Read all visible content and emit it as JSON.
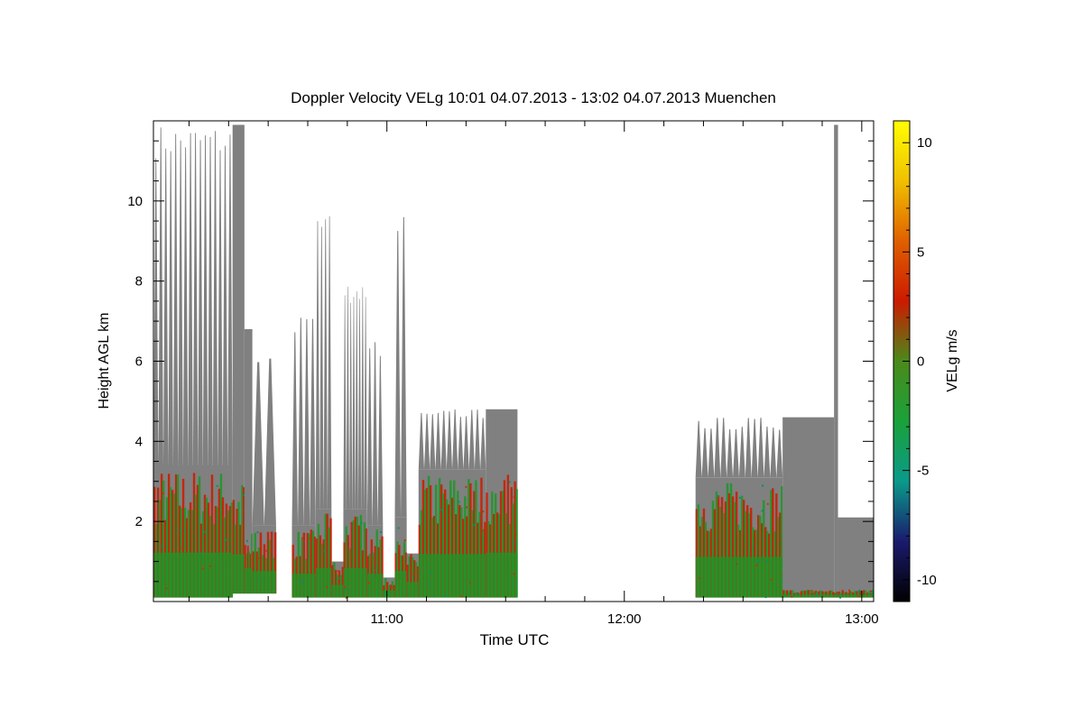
{
  "chart_data": {
    "type": "heatmap",
    "title": "Doppler Velocity VELg   10:01 04.07.2013 - 13:02 04.07.2013 Muenchen",
    "xlabel": "Time UTC",
    "ylabel": "Height AGL km",
    "xlim": [
      "10:01",
      "13:03"
    ],
    "ylim": [
      0,
      12
    ],
    "x_ticks": [
      "11:00",
      "12:00",
      "13:00"
    ],
    "y_ticks": [
      2,
      4,
      6,
      8,
      10
    ],
    "colorbar": {
      "label": "VELg m/s",
      "range": [
        -11,
        11
      ],
      "ticks": [
        10,
        5,
        0,
        -5,
        -10
      ],
      "colors": [
        "#000000",
        "#1a1a6e",
        "#0a9a8a",
        "#1aa13a",
        "#4a8a1a",
        "#cc1a00",
        "#e06000",
        "#f0c000",
        "#ffff00"
      ]
    },
    "fill_color": "#808080",
    "signal_colors": [
      "#c81e00",
      "#1e9628",
      "#0a8c6e",
      "#b43c00"
    ],
    "profile_blocks": [
      {
        "start": "10:01",
        "end": "10:21",
        "top_km": 11.9,
        "signal_top_km": 3.3,
        "spikes": 16,
        "base_km": 0.1
      },
      {
        "start": "10:21",
        "end": "10:24",
        "top_km": 11.9,
        "signal_top_km": 3.0,
        "spikes": 0,
        "base_km": 0.2
      },
      {
        "start": "10:24",
        "end": "10:26",
        "top_km": 6.8,
        "signal_top_km": 2.0,
        "spikes": 0,
        "base_km": 0.2
      },
      {
        "start": "10:26",
        "end": "10:32",
        "top_km": 6.2,
        "signal_top_km": 1.8,
        "spikes": 2,
        "base_km": 0.2
      },
      {
        "start": "10:36",
        "end": "10:42",
        "top_km": 7.2,
        "signal_top_km": 1.8,
        "spikes": 4,
        "base_km": 0.1
      },
      {
        "start": "10:42",
        "end": "10:46",
        "top_km": 9.8,
        "signal_top_km": 2.2,
        "spikes": 4,
        "base_km": 0.1
      },
      {
        "start": "10:46",
        "end": "10:49",
        "top_km": 1.0,
        "signal_top_km": 1.0,
        "spikes": 0,
        "base_km": 0.1
      },
      {
        "start": "10:49",
        "end": "10:55",
        "top_km": 8.0,
        "signal_top_km": 2.2,
        "spikes": 8,
        "base_km": 0.1
      },
      {
        "start": "10:55",
        "end": "10:59",
        "top_km": 6.5,
        "signal_top_km": 1.8,
        "spikes": 3,
        "base_km": 0.1
      },
      {
        "start": "10:59",
        "end": "11:02",
        "top_km": 0.6,
        "signal_top_km": 0.6,
        "spikes": 0,
        "base_km": 0.1
      },
      {
        "start": "11:02",
        "end": "11:05",
        "top_km": 9.6,
        "signal_top_km": 2.0,
        "spikes": 2,
        "base_km": 0.1
      },
      {
        "start": "11:05",
        "end": "11:08",
        "top_km": 1.2,
        "signal_top_km": 1.2,
        "spikes": 0,
        "base_km": 0.1
      },
      {
        "start": "11:08",
        "end": "11:25",
        "top_km": 4.8,
        "signal_top_km": 3.2,
        "spikes": 12,
        "base_km": 0.1
      },
      {
        "start": "11:25",
        "end": "11:33",
        "top_km": 4.8,
        "signal_top_km": 3.3,
        "spikes": 0,
        "base_km": 0.1
      },
      {
        "start": "12:18",
        "end": "12:40",
        "top_km": 4.6,
        "signal_top_km": 3.0,
        "spikes": 14,
        "base_km": 0.1
      },
      {
        "start": "12:40",
        "end": "12:53",
        "top_km": 4.6,
        "signal_top_km": 0.3,
        "spikes": 0,
        "base_km": 0.1
      },
      {
        "start": "12:53",
        "end": "12:54",
        "top_km": 11.9,
        "signal_top_km": 0.3,
        "spikes": 0,
        "base_km": 0.1
      },
      {
        "start": "12:54",
        "end": "13:03",
        "top_km": 2.1,
        "signal_top_km": 0.3,
        "spikes": 0,
        "base_km": 0.1
      }
    ]
  }
}
